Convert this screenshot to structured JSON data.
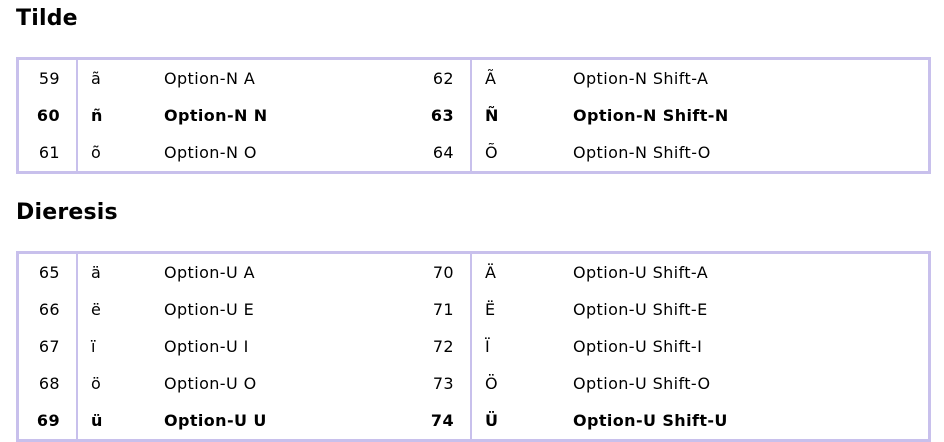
{
  "page": {
    "background_color": "#ffffff",
    "text_color": "#000000"
  },
  "table_style": {
    "border_color": "#c8c0ec"
  },
  "sections": [
    {
      "title": "Tilde",
      "rows": [
        {
          "bold": false,
          "cells": [
            "59",
            "ã",
            "Option-N A",
            "62",
            "Ã",
            "Option-N Shift-A"
          ]
        },
        {
          "bold": true,
          "cells": [
            "60",
            "ñ",
            "Option-N N",
            "63",
            "Ñ",
            "Option-N Shift-N"
          ]
        },
        {
          "bold": false,
          "cells": [
            "61",
            "õ",
            "Option-N O",
            "64",
            "Õ",
            "Option-N Shift-O"
          ]
        }
      ]
    },
    {
      "title": "Dieresis",
      "rows": [
        {
          "bold": false,
          "cells": [
            "65",
            "ä",
            "Option-U A",
            "70",
            "Ä",
            "Option-U Shift-A"
          ]
        },
        {
          "bold": false,
          "cells": [
            "66",
            "ë",
            "Option-U E",
            "71",
            "Ë",
            "Option-U Shift-E"
          ]
        },
        {
          "bold": false,
          "cells": [
            "67",
            "ï",
            "Option-U I",
            "72",
            "Ï",
            "Option-U Shift-I"
          ]
        },
        {
          "bold": false,
          "cells": [
            "68",
            "ö",
            "Option-U O",
            "73",
            "Ö",
            "Option-U Shift-O"
          ]
        },
        {
          "bold": true,
          "cells": [
            "69",
            "ü",
            "Option-U U",
            "74",
            "Ü",
            "Option-U Shift-U"
          ]
        }
      ]
    }
  ]
}
